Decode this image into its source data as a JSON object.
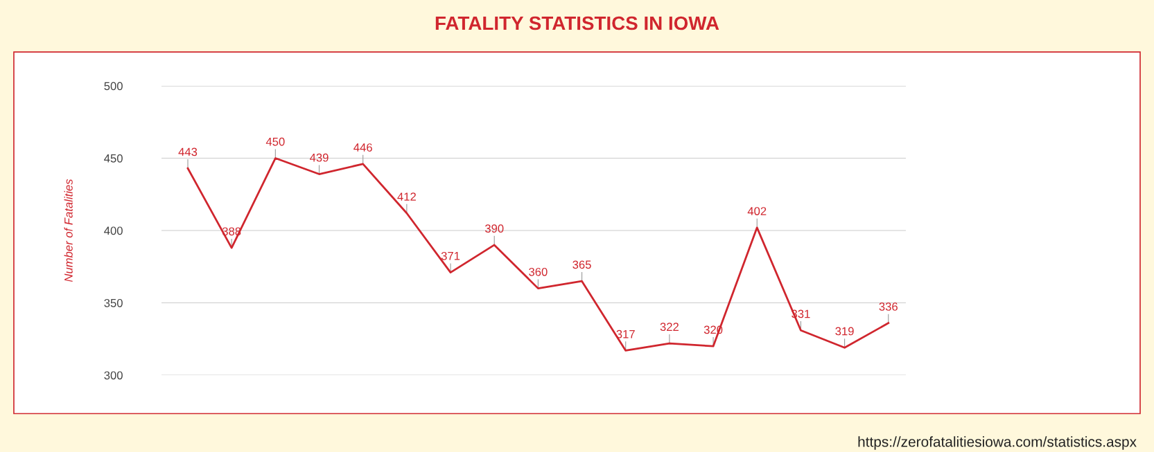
{
  "chart_data": {
    "type": "line",
    "title": "FATALITY STATISTICS IN IOWA",
    "ylabel": "Number of Fatalities",
    "categories": [
      null,
      null,
      null,
      null,
      null,
      null,
      null,
      null,
      null,
      null,
      null,
      null,
      null,
      null,
      null,
      null,
      null
    ],
    "series": [
      {
        "color": "#d0262e",
        "values": [
          443,
          388,
          450,
          439,
          446,
          412,
          371,
          390,
          360,
          365,
          317,
          322,
          320,
          402,
          331,
          319,
          336
        ]
      }
    ],
    "ylim": [
      300,
      500
    ],
    "yticks": [
      300,
      350,
      400,
      450,
      500
    ],
    "grid": "y",
    "data_labels": true,
    "tick_labels": "y",
    "annotations": [
      "https://zerofatalitiesiowa.com/statistics.aspx"
    ]
  }
}
